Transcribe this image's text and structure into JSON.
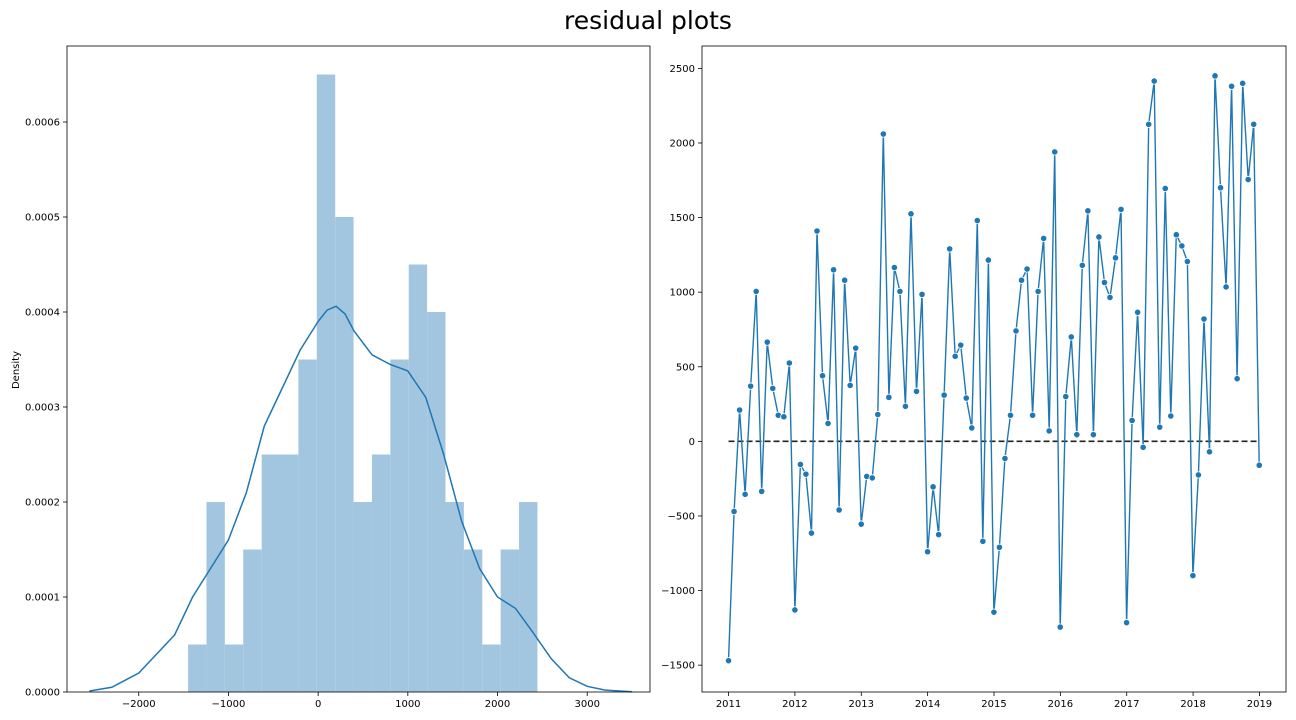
{
  "figure": {
    "title": "residual plots"
  },
  "colors": {
    "hist": "#a3c6e0",
    "line": "#1f77b4",
    "zero": "#222222"
  },
  "chart_data": [
    {
      "type": "histogram",
      "title": "",
      "xlabel": "",
      "ylabel": "Density",
      "xlim": [
        -2800,
        3700
      ],
      "ylim": [
        0,
        0.00068
      ],
      "xticks": [
        -2000,
        -1000,
        0,
        1000,
        2000,
        3000
      ],
      "xtick_labels": [
        "−2000",
        "−1000",
        "0",
        "1000",
        "2000",
        "3000"
      ],
      "yticks": [
        0,
        0.0001,
        0.0002,
        0.0003,
        0.0004,
        0.0005,
        0.0006
      ],
      "ytick_labels": [
        "0.0000",
        "0.0001",
        "0.0002",
        "0.0003",
        "0.0004",
        "0.0005",
        "0.0006"
      ],
      "bins": [
        {
          "start": -1450,
          "end": -1245,
          "density": 5e-05
        },
        {
          "start": -1245,
          "end": -1040,
          "density": 0.0002
        },
        {
          "start": -1040,
          "end": -835,
          "density": 5e-05
        },
        {
          "start": -835,
          "end": -630,
          "density": 0.00015
        },
        {
          "start": -630,
          "end": -425,
          "density": 0.00025
        },
        {
          "start": -425,
          "end": -220,
          "density": 0.00025
        },
        {
          "start": -220,
          "end": -15,
          "density": 0.00035
        },
        {
          "start": -15,
          "end": 190,
          "density": 0.00065
        },
        {
          "start": 190,
          "end": 395,
          "density": 0.0005
        },
        {
          "start": 395,
          "end": 600,
          "density": 0.0002
        },
        {
          "start": 600,
          "end": 805,
          "density": 0.00025
        },
        {
          "start": 805,
          "end": 1010,
          "density": 0.00035
        },
        {
          "start": 1010,
          "end": 1215,
          "density": 0.00045
        },
        {
          "start": 1215,
          "end": 1420,
          "density": 0.0004
        },
        {
          "start": 1420,
          "end": 1625,
          "density": 0.0002
        },
        {
          "start": 1625,
          "end": 1830,
          "density": 0.00015
        },
        {
          "start": 1830,
          "end": 2035,
          "density": 5e-05
        },
        {
          "start": 2035,
          "end": 2240,
          "density": 0.00015
        },
        {
          "start": 2240,
          "end": 2445,
          "density": 0.0002
        }
      ],
      "kde": [
        [
          -2550,
          1e-06
        ],
        [
          -2300,
          5e-06
        ],
        [
          -2000,
          2e-05
        ],
        [
          -1600,
          6e-05
        ],
        [
          -1400,
          0.0001
        ],
        [
          -1200,
          0.00013
        ],
        [
          -1000,
          0.00016
        ],
        [
          -800,
          0.00021
        ],
        [
          -600,
          0.00028
        ],
        [
          -400,
          0.00032
        ],
        [
          -200,
          0.00036
        ],
        [
          0,
          0.00039
        ],
        [
          100,
          0.000402
        ],
        [
          200,
          0.000406
        ],
        [
          300,
          0.000398
        ],
        [
          400,
          0.00038
        ],
        [
          600,
          0.000355
        ],
        [
          800,
          0.000345
        ],
        [
          1000,
          0.000338
        ],
        [
          1200,
          0.00031
        ],
        [
          1400,
          0.00025
        ],
        [
          1600,
          0.00018
        ],
        [
          1800,
          0.00013
        ],
        [
          2000,
          0.0001
        ],
        [
          2200,
          8.8e-05
        ],
        [
          2400,
          6.2e-05
        ],
        [
          2600,
          3.5e-05
        ],
        [
          2800,
          1.5e-05
        ],
        [
          3000,
          6e-06
        ],
        [
          3200,
          2e-06
        ],
        [
          3500,
          3e-07
        ]
      ]
    },
    {
      "type": "line",
      "title": "",
      "xlabel": "",
      "ylabel": "",
      "xlim": [
        2010.6,
        2019.4
      ],
      "ylim": [
        -1680,
        2650
      ],
      "xticks": [
        2011,
        2012,
        2013,
        2014,
        2015,
        2016,
        2017,
        2018,
        2019
      ],
      "xtick_labels": [
        "2011",
        "2012",
        "2013",
        "2014",
        "2015",
        "2016",
        "2017",
        "2018",
        "2019"
      ],
      "yticks": [
        -1500,
        -1000,
        -500,
        0,
        500,
        1000,
        1500,
        2000,
        2500
      ],
      "ytick_labels": [
        "−1500",
        "−1000",
        "−500",
        "0",
        "500",
        "1000",
        "1500",
        "2000",
        "2500"
      ],
      "reference_line": {
        "y": 0,
        "from": 2011,
        "to": 2019,
        "style": "dashed"
      },
      "series": [
        {
          "x_start": 2011,
          "x_step": 0.0833,
          "values": [
            -1470,
            -470,
            210,
            -355,
            370,
            1005,
            -335,
            665,
            355,
            175,
            165,
            525,
            -1130,
            -155,
            -220,
            -615,
            1410,
            440,
            120,
            1150,
            -460,
            1080,
            375,
            625,
            -555,
            -235,
            -245,
            180,
            2060,
            295,
            1165,
            1005,
            235,
            1525,
            335,
            985,
            -740,
            -305,
            -625,
            310,
            1290,
            570,
            645,
            290,
            90,
            1480,
            -670,
            1215,
            -1145,
            -710,
            -115,
            175,
            740,
            1080,
            1155,
            175,
            1005,
            1360,
            70,
            1940,
            -1245,
            300,
            700,
            45,
            1180,
            1545,
            45,
            1370,
            1065,
            965,
            1230,
            1555,
            -1215,
            140,
            865,
            -40,
            2125,
            2415,
            95,
            1695,
            170,
            1385,
            1310,
            1205,
            -900,
            -225,
            820,
            -70,
            2450,
            1700,
            1035,
            2380,
            420,
            2400,
            1755,
            2125,
            -160
          ]
        }
      ]
    }
  ]
}
